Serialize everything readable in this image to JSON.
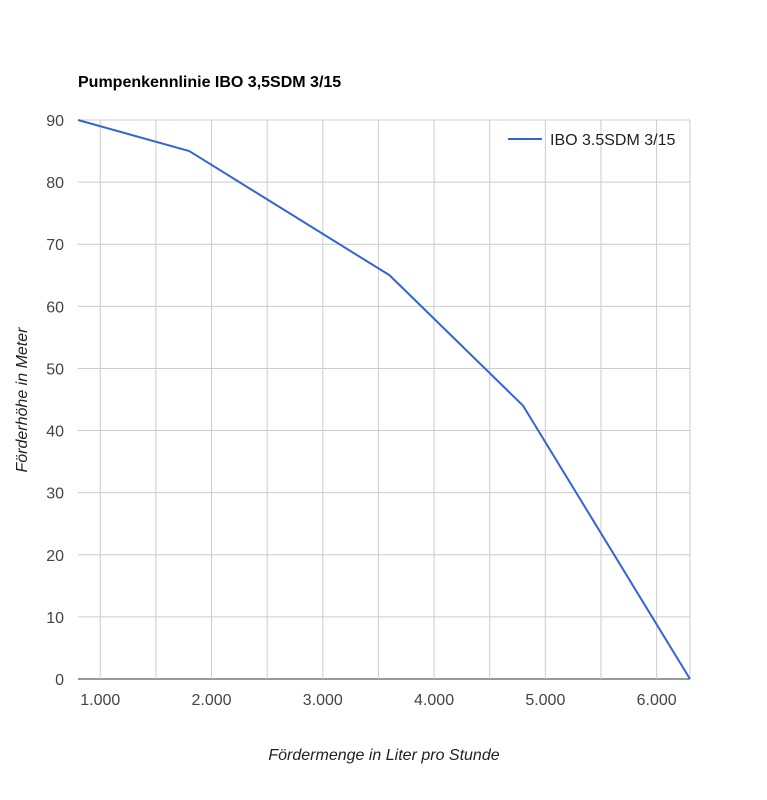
{
  "chart_data": {
    "type": "line",
    "title": "Pumpenkennlinie IBO 3,5SDM 3/15",
    "xlabel": "Fördermenge in Liter pro Stunde",
    "ylabel": "Förderhöhe in Meter",
    "xlim": [
      800,
      6300
    ],
    "ylim": [
      0,
      90
    ],
    "x_ticks": [
      {
        "value": 1000,
        "label": "1.000"
      },
      {
        "value": 2000,
        "label": "2.000"
      },
      {
        "value": 3000,
        "label": "3.000"
      },
      {
        "value": 4000,
        "label": "4.000"
      },
      {
        "value": 5000,
        "label": "5.000"
      },
      {
        "value": 6000,
        "label": "6.000"
      }
    ],
    "x_minor_grid": [
      1500,
      2500,
      3500,
      4500,
      5500
    ],
    "y_ticks": [
      {
        "value": 0,
        "label": "0"
      },
      {
        "value": 10,
        "label": "10"
      },
      {
        "value": 20,
        "label": "20"
      },
      {
        "value": 30,
        "label": "30"
      },
      {
        "value": 40,
        "label": "40"
      },
      {
        "value": 50,
        "label": "50"
      },
      {
        "value": 60,
        "label": "60"
      },
      {
        "value": 70,
        "label": "70"
      },
      {
        "value": 80,
        "label": "80"
      },
      {
        "value": 90,
        "label": "90"
      }
    ],
    "series": [
      {
        "name": "IBO 3.5SDM 3/15",
        "color": "#3366cc",
        "x": [
          800,
          1800,
          3600,
          4800,
          6300
        ],
        "y": [
          90,
          85,
          65,
          44,
          0
        ]
      }
    ],
    "grid": true,
    "legend_position": "top-right"
  }
}
